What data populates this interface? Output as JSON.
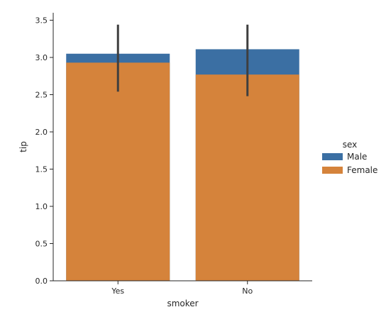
{
  "chart_data": {
    "type": "bar",
    "title": "",
    "xlabel": "smoker",
    "ylabel": "tip",
    "categories": [
      "Yes",
      "No"
    ],
    "ylim": [
      0,
      3.6
    ],
    "yticks": [
      "0.0",
      "0.5",
      "1.0",
      "1.5",
      "2.0",
      "2.5",
      "3.0",
      "3.5"
    ],
    "series": [
      {
        "name": "Male",
        "color": "#3b6fa3",
        "values": [
          3.05,
          3.11
        ],
        "ci": [
          [
            2.54,
            3.44
          ],
          [
            2.48,
            3.44
          ]
        ]
      },
      {
        "name": "Female",
        "color": "#d5833b",
        "values": [
          2.93,
          2.77
        ]
      }
    ],
    "legend": {
      "title": "sex",
      "placement": "right",
      "entries": [
        "Male",
        "Female"
      ]
    },
    "grid": false
  }
}
